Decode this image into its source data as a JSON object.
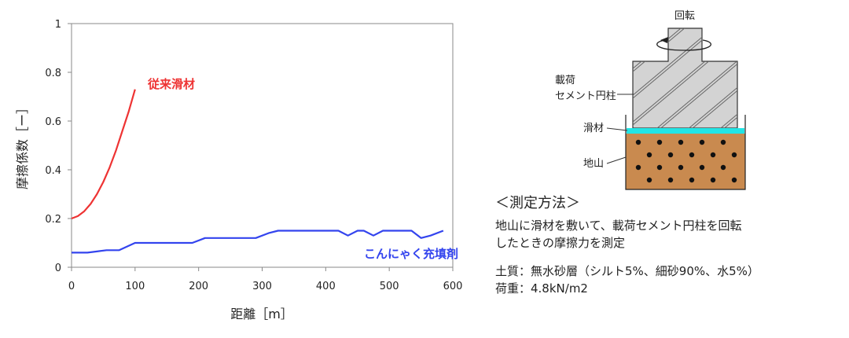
{
  "chart_data": {
    "type": "line",
    "xlabel": "距離［m］",
    "ylabel": "摩擦係数［ー］",
    "xlim": [
      0,
      600
    ],
    "ylim": [
      0,
      1
    ],
    "x_ticks": [
      "0",
      "100",
      "200",
      "300",
      "400",
      "500",
      "600"
    ],
    "y_ticks": [
      "0",
      "0.2",
      "0.4",
      "0.6",
      "0.8",
      "1"
    ],
    "grid": false,
    "series": [
      {
        "name": "従来滑材",
        "color": "#ee3333",
        "x": [
          0,
          10,
          20,
          30,
          40,
          50,
          60,
          70,
          80,
          90,
          100
        ],
        "y": [
          0.2,
          0.21,
          0.23,
          0.26,
          0.3,
          0.35,
          0.41,
          0.48,
          0.56,
          0.64,
          0.73
        ]
      },
      {
        "name": "こんにゃく充填剤",
        "color": "#3344ee",
        "x": [
          0,
          25,
          40,
          55,
          75,
          100,
          130,
          160,
          190,
          210,
          230,
          260,
          290,
          310,
          325,
          340,
          370,
          400,
          420,
          435,
          450,
          460,
          475,
          490,
          505,
          520,
          535,
          550,
          565,
          585
        ],
        "y": [
          0.06,
          0.06,
          0.065,
          0.07,
          0.07,
          0.1,
          0.1,
          0.1,
          0.1,
          0.12,
          0.12,
          0.12,
          0.12,
          0.14,
          0.15,
          0.15,
          0.15,
          0.15,
          0.15,
          0.13,
          0.15,
          0.15,
          0.13,
          0.15,
          0.15,
          0.15,
          0.15,
          0.12,
          0.13,
          0.15
        ]
      }
    ]
  },
  "diagram": {
    "rotation_label": "回転",
    "load_label_line1": "載荷",
    "load_label_line2": "セメント円柱",
    "lubricant_label": "滑材",
    "ground_label": "地山"
  },
  "method": {
    "heading": "＜測定方法＞",
    "description": "地山に滑材を敷いて、載荷セメント円柱を回転\nしたときの摩擦力を測定",
    "soil": "土質：無水砂層（シルト5%、細砂90%、水5%）",
    "load": "荷重：4.8kN/m2"
  },
  "colors": {
    "cement": "#d3d3d3",
    "lubricant": "#22e5e5",
    "ground": "#c98a4f",
    "ground_dots": "#111111"
  }
}
